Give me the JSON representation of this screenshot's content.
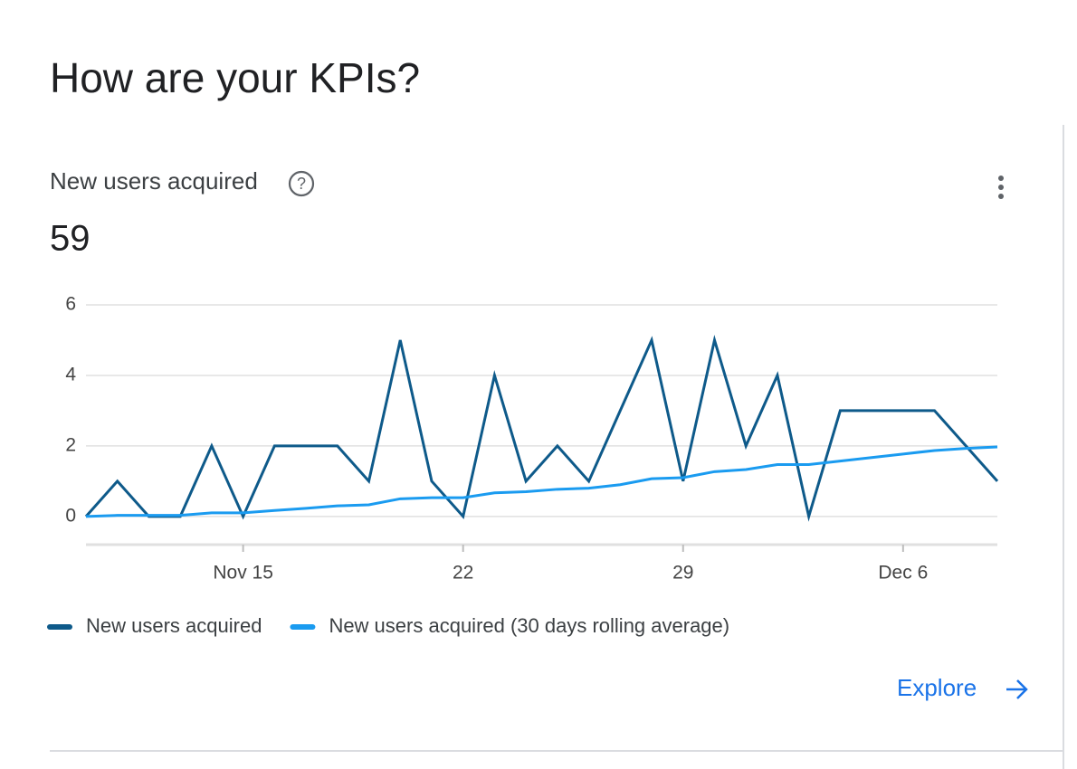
{
  "header": {
    "title": "How are your KPIs?"
  },
  "card": {
    "title": "New users acquired",
    "metric": 59,
    "link": "Explore"
  },
  "chart_data": {
    "type": "line",
    "categories": [
      null,
      null,
      null,
      null,
      null,
      "Nov 15",
      null,
      null,
      null,
      null,
      null,
      null,
      "22",
      null,
      null,
      null,
      null,
      null,
      null,
      "29",
      null,
      null,
      null,
      null,
      null,
      null,
      "Dec 6",
      null,
      null,
      null
    ],
    "series": [
      {
        "name": "New users acquired",
        "color": "#0e5a8a",
        "values": [
          0,
          1,
          0,
          0,
          2,
          0,
          2,
          2,
          2,
          1,
          5,
          1,
          0,
          4,
          1,
          2,
          1,
          3,
          5,
          1,
          5,
          2,
          4,
          0,
          3,
          3,
          3,
          3,
          2,
          1
        ]
      },
      {
        "name": "New users acquired (30 days rolling average)",
        "color": "#1a9bf0",
        "values": [
          0,
          0.03,
          0.03,
          0.03,
          0.1,
          0.1,
          0.17,
          0.23,
          0.3,
          0.33,
          0.5,
          0.53,
          0.53,
          0.67,
          0.7,
          0.77,
          0.8,
          0.9,
          1.07,
          1.1,
          1.27,
          1.33,
          1.47,
          1.47,
          1.57,
          1.67,
          1.77,
          1.87,
          1.93,
          1.97
        ]
      }
    ],
    "ylim": [
      -0.8,
      6
    ],
    "yticks": [
      0,
      2,
      4,
      6
    ],
    "grid": true,
    "legend": "bottom-left"
  }
}
